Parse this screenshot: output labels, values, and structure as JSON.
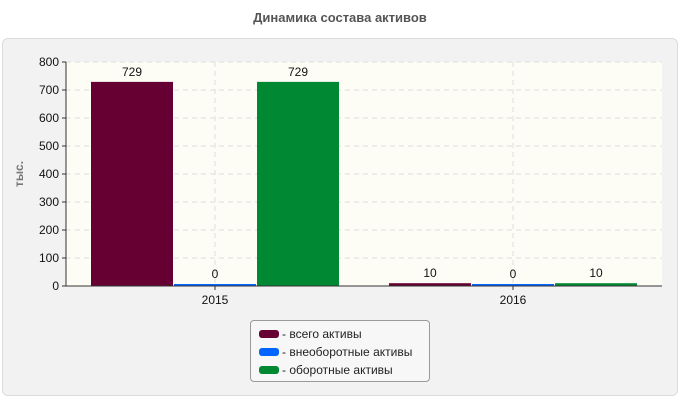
{
  "chart_data": {
    "type": "bar",
    "title": "Динамика состава активов",
    "ylabel": "тыс.",
    "xlabel": "",
    "categories": [
      "2015",
      "2016"
    ],
    "ylim": [
      0,
      800
    ],
    "yticks": [
      0,
      100,
      200,
      300,
      400,
      500,
      600,
      700,
      800
    ],
    "grid": true,
    "legend_position": "bottom",
    "series": [
      {
        "name": "- всего активы",
        "color": "#660033",
        "values": [
          729,
          10
        ]
      },
      {
        "name": "- внеоборотные активы",
        "color": "#0066ff",
        "values": [
          0,
          0
        ]
      },
      {
        "name": "- оборотные активы",
        "color": "#008833",
        "values": [
          729,
          10
        ]
      }
    ]
  }
}
